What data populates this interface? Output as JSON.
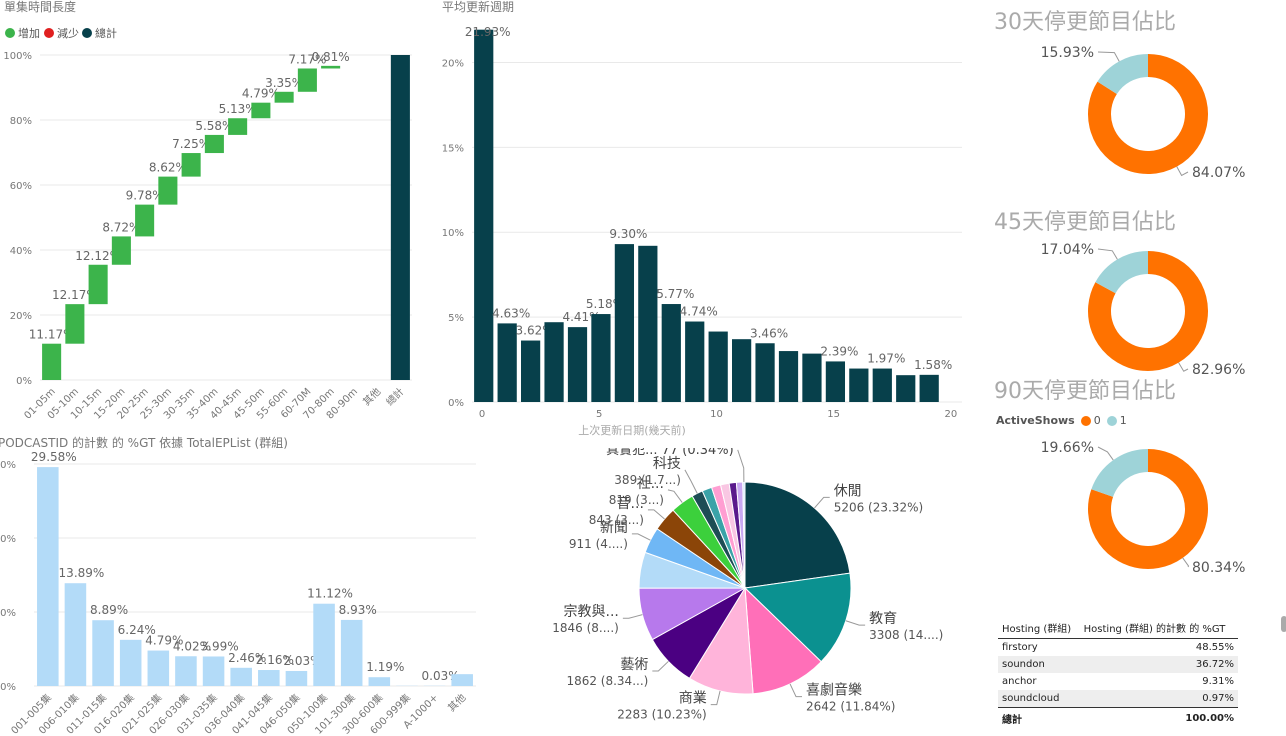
{
  "chart_data": [
    {
      "type": "waterfall",
      "title": "單集時間長度",
      "legend": [
        {
          "label": "增加",
          "color": "#3cb44b"
        },
        {
          "label": "減少",
          "color": "#e02020"
        },
        {
          "label": "總計",
          "color": "#07404b"
        }
      ],
      "categories": [
        "01-05m",
        "05-10m",
        "10-15m",
        "15-20m",
        "20-25m",
        "25-30m",
        "30-35m",
        "35-40m",
        "40-45m",
        "45-50m",
        "55-60m",
        "60-70M",
        "70-80m",
        "80-90m",
        "其他",
        "總計"
      ],
      "values": [
        11.17,
        12.17,
        12.12,
        8.72,
        9.78,
        8.62,
        7.25,
        5.58,
        5.13,
        4.79,
        3.35,
        7.17,
        0.81,
        0.0,
        0.0,
        100.0
      ],
      "labels": [
        "11.17%",
        "12.17%",
        "12.12%",
        "8.72%",
        "9.78%",
        "8.62%",
        "7.25%",
        "5.58%",
        "5.13%",
        "4.79%",
        "3.35%",
        "7.17%",
        "0.81%",
        "",
        "",
        ""
      ],
      "y_ticks": [
        "0%",
        "20%",
        "40%",
        "60%",
        "80%",
        "100%"
      ],
      "ylim": [
        0,
        100
      ]
    },
    {
      "type": "bar",
      "title": "平均更新週期",
      "xlabel": "上次更新日期(幾天前)",
      "x": [
        0,
        1,
        2,
        3,
        4,
        5,
        6,
        7,
        8,
        9,
        10,
        11,
        12,
        13,
        14,
        15,
        16,
        17,
        18,
        19
      ],
      "values": [
        21.93,
        4.63,
        3.62,
        4.7,
        4.41,
        5.18,
        9.3,
        9.2,
        5.77,
        4.74,
        4.15,
        3.7,
        3.46,
        3.0,
        2.85,
        2.39,
        1.97,
        1.97,
        1.58,
        1.6
      ],
      "labels": {
        "0": "21.93%",
        "1": "4.63%",
        "2": "3.62%",
        "4": "4.41%",
        "5": "5.18%",
        "6": "9.30%",
        "8": "5.77%",
        "9": "4.74%",
        "12": "3.46%",
        "15": "2.39%",
        "17": "1.97%",
        "19": "1.58%"
      },
      "x_ticks": [
        "0",
        "5",
        "10",
        "15",
        "20"
      ],
      "y_ticks": [
        "0%",
        "5%",
        "10%",
        "15%",
        "20%"
      ],
      "ylim": [
        0,
        22.5
      ],
      "color": "#07404b"
    },
    {
      "type": "bar",
      "title": "PODCASTID 的計數 的 %GT 依據 TotalEPList (群組)",
      "categories": [
        "001-005集",
        "006-010集",
        "011-015集",
        "016-020集",
        "021-025集",
        "026-030集",
        "031-035集",
        "036-040集",
        "041-045集",
        "046-050集",
        "050-100集",
        "101-300集",
        "300-600集",
        "600-999集",
        "A-1000+",
        "其他"
      ],
      "values": [
        29.58,
        13.89,
        8.89,
        6.24,
        4.79,
        4.02,
        3.99,
        2.46,
        2.16,
        2.03,
        11.12,
        8.93,
        1.19,
        0.03,
        0.03,
        1.6
      ],
      "labels": [
        "29.58%",
        "13.89%",
        "8.89%",
        "6.24%",
        "4.79%",
        "4.02%",
        "3.99%",
        "2.46%",
        "2.16%",
        "2.03%",
        "11.12%",
        "8.93%",
        "1.19%",
        "",
        "0.03%",
        ""
      ],
      "y_ticks": [
        "0%",
        "10%",
        "20%",
        "30%"
      ],
      "ylim": [
        0,
        30
      ],
      "color": "#b3dbf8"
    },
    {
      "type": "pie",
      "slices": [
        {
          "name": "休閒",
          "value": 5206,
          "label": "5206 (23.32%)",
          "color": "#07404b"
        },
        {
          "name": "教育",
          "value": 3308,
          "label": "3308 (14....)",
          "color": "#0b9190"
        },
        {
          "name": "喜劇音樂",
          "value": 2642,
          "label": "2642 (11.84%)",
          "color": "#ff6fb8"
        },
        {
          "name": "商業",
          "value": 2283,
          "label": "2283 (10.23%)",
          "color": "#ffb4da"
        },
        {
          "name": "藝術",
          "value": 1862,
          "label": "1862 (8.34...)",
          "color": "#4b0082"
        },
        {
          "name": "宗教與...",
          "value": 1846,
          "label": "1846 (8....)",
          "color": "#b779ec"
        },
        {
          "name": "",
          "value": 1250,
          "label": "",
          "color": "#b3dbf8"
        },
        {
          "name": "新聞",
          "value": 911,
          "label": "911 (4....)",
          "color": "#6fb7f5"
        },
        {
          "name": "音...",
          "value": 843,
          "label": "843 (3...)",
          "color": "#8b4508"
        },
        {
          "name": "社...",
          "value": 819,
          "label": "819 (3...)",
          "color": "#3cd03c"
        },
        {
          "name": "科技",
          "value": 389,
          "label": "389 (1.7...)",
          "color": "#1d4d55"
        },
        {
          "name": "",
          "value": 340,
          "label": "",
          "color": "#3aa3a8"
        },
        {
          "name": "",
          "value": 320,
          "label": "",
          "color": "#ff9ed2"
        },
        {
          "name": "",
          "value": 300,
          "label": "",
          "color": "#f9c7e3"
        },
        {
          "name": "",
          "value": 250,
          "label": "",
          "color": "#5a1a8c"
        },
        {
          "name": "",
          "value": 220,
          "label": "",
          "color": "#c9a8f2"
        },
        {
          "name": "真實犯...",
          "value": 77,
          "label": "77 (0.34%)",
          "color": "#cfe7fb"
        }
      ]
    },
    {
      "type": "pie",
      "title": "30天停更節目佔比",
      "slices": [
        {
          "name": "0",
          "value": 84.07,
          "label": "84.07%",
          "color": "#ff7200"
        },
        {
          "name": "1",
          "value": 15.93,
          "label": "15.93%",
          "color": "#9ed3d8"
        }
      ]
    },
    {
      "type": "pie",
      "title": "45天停更節目佔比",
      "slices": [
        {
          "name": "0",
          "value": 82.96,
          "label": "82.96%",
          "color": "#ff7200"
        },
        {
          "name": "1",
          "value": 17.04,
          "label": "17.04%",
          "color": "#9ed3d8"
        }
      ]
    },
    {
      "type": "pie",
      "title": "90天停更節目佔比",
      "legend_title": "ActiveShows",
      "legend": [
        {
          "label": "0",
          "color": "#ff7200"
        },
        {
          "label": "1",
          "color": "#9ed3d8"
        }
      ],
      "slices": [
        {
          "name": "0",
          "value": 80.34,
          "label": "80.34%",
          "color": "#ff7200"
        },
        {
          "name": "1",
          "value": 19.66,
          "label": "19.66%",
          "color": "#9ed3d8"
        }
      ]
    },
    {
      "type": "table",
      "columns": [
        "Hosting (群組)",
        "Hosting (群組) 的計數 的 %GT"
      ],
      "rows": [
        [
          "firstory",
          "48.55%"
        ],
        [
          "soundon",
          "36.72%"
        ],
        [
          "anchor",
          "9.31%"
        ],
        [
          "soundcloud",
          "0.97%"
        ]
      ],
      "total": [
        "總計",
        "100.00%"
      ]
    }
  ]
}
